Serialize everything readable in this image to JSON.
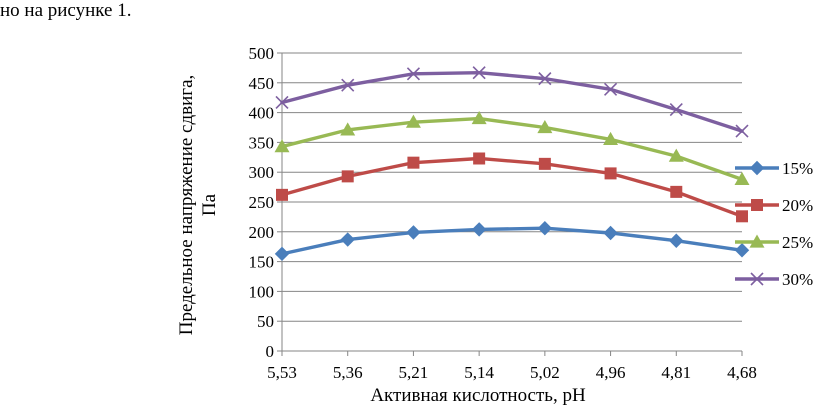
{
  "intro_text": "но на рисунке 1.",
  "chart_data": {
    "type": "line",
    "title": "",
    "xlabel": "Активная кислотность, рН",
    "ylabel_line1": "Предельное напряжение сдвига,",
    "ylabel_line2": "Па",
    "categories": [
      "5,53",
      "5,36",
      "5,21",
      "5,14",
      "5,02",
      "4,96",
      "4,81",
      "4,68"
    ],
    "ylim": [
      0,
      500
    ],
    "yticks": [
      0,
      50,
      100,
      150,
      200,
      250,
      300,
      350,
      400,
      450,
      500
    ],
    "grid": true,
    "legend_position": "right",
    "series": [
      {
        "name": "15%",
        "color": "#4a7ebb",
        "marker": "diamond",
        "values": [
          163,
          187,
          199,
          204,
          206,
          198,
          185,
          169
        ]
      },
      {
        "name": "20%",
        "color": "#be4b48",
        "marker": "square",
        "values": [
          262,
          293,
          316,
          323,
          314,
          298,
          267,
          226
        ]
      },
      {
        "name": "25%",
        "color": "#98b954",
        "marker": "triangle",
        "values": [
          343,
          371,
          384,
          390,
          375,
          355,
          327,
          288
        ]
      },
      {
        "name": "30%",
        "color": "#7d5fa0",
        "marker": "x",
        "values": [
          417,
          446,
          465,
          467,
          457,
          439,
          405,
          369
        ]
      }
    ]
  }
}
